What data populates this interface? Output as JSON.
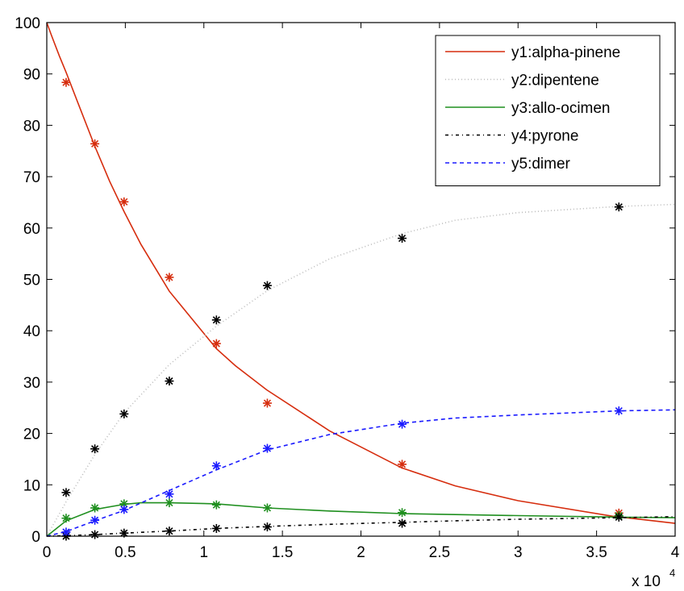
{
  "chart_data": {
    "type": "line",
    "title": "",
    "xlabel": "",
    "ylabel": "",
    "xlim": [
      0,
      40000
    ],
    "ylim": [
      0,
      100
    ],
    "x_exponent_label": "x 10",
    "x_exponent_power": "4",
    "x_ticks": [
      {
        "value": 0,
        "label": "0"
      },
      {
        "value": 5000,
        "label": "0.5"
      },
      {
        "value": 10000,
        "label": "1"
      },
      {
        "value": 15000,
        "label": "1.5"
      },
      {
        "value": 20000,
        "label": "2"
      },
      {
        "value": 25000,
        "label": "2.5"
      },
      {
        "value": 30000,
        "label": "3"
      },
      {
        "value": 35000,
        "label": "3.5"
      },
      {
        "value": 40000,
        "label": "4"
      }
    ],
    "y_ticks": [
      {
        "value": 0,
        "label": "0"
      },
      {
        "value": 10,
        "label": "10"
      },
      {
        "value": 20,
        "label": "20"
      },
      {
        "value": 30,
        "label": "30"
      },
      {
        "value": 40,
        "label": "40"
      },
      {
        "value": 50,
        "label": "50"
      },
      {
        "value": 60,
        "label": "60"
      },
      {
        "value": 70,
        "label": "70"
      },
      {
        "value": 80,
        "label": "80"
      },
      {
        "value": 90,
        "label": "90"
      },
      {
        "value": 100,
        "label": "100"
      }
    ],
    "grid": false,
    "legend_position": "top-right",
    "series": [
      {
        "name": "y1:alpha-pinene",
        "color": "#d62d0e",
        "dash": "solid",
        "marker_color": "#d62d0e",
        "x": [
          0,
          300,
          800,
          1230,
          2000,
          3060,
          4000,
          4920,
          6000,
          7800,
          10800,
          12000,
          14000,
          18000,
          22600,
          26000,
          30000,
          36000,
          38000,
          40000
        ],
        "y": [
          100,
          97.5,
          93.5,
          90.3,
          84.2,
          75.9,
          69.1,
          63.2,
          56.8,
          47.7,
          36.5,
          33.2,
          28.5,
          20.5,
          13.3,
          9.8,
          6.9,
          3.9,
          3.2,
          2.5
        ],
        "obs_x": [
          1230,
          3060,
          4920,
          7800,
          10800,
          14040,
          22620,
          36420
        ],
        "obs_y": [
          88.35,
          76.4,
          65.1,
          50.4,
          37.5,
          25.9,
          14.0,
          4.5
        ]
      },
      {
        "name": "y2:dipentene",
        "color": "#bbbbbb",
        "dash": "1,3",
        "marker_color": "#000000",
        "x": [
          0,
          1230,
          3060,
          4920,
          7800,
          10800,
          14040,
          18000,
          22620,
          26000,
          30000,
          36420,
          40000
        ],
        "y": [
          0,
          6.7,
          15.9,
          24.0,
          33.4,
          40.9,
          47.8,
          54.0,
          58.9,
          61.5,
          63.0,
          64.2,
          64.6
        ],
        "obs_x": [
          1230,
          3060,
          4920,
          7800,
          10800,
          14040,
          22620,
          36420
        ],
        "obs_y": [
          8.5,
          17.0,
          23.8,
          30.2,
          42.1,
          48.8,
          58.0,
          64.1
        ]
      },
      {
        "name": "y3:allo-ocimen",
        "color": "#1f8f1f",
        "dash": "solid",
        "marker_color": "#1f8f1f",
        "x": [
          0,
          1230,
          3060,
          4920,
          6000,
          7800,
          10800,
          14040,
          18000,
          22620,
          26000,
          30000,
          36420,
          40000
        ],
        "y": [
          0,
          3.0,
          5.2,
          6.2,
          6.5,
          6.5,
          6.3,
          5.5,
          4.9,
          4.4,
          4.2,
          4.0,
          3.7,
          3.6
        ],
        "obs_x": [
          1230,
          3060,
          4920,
          7800,
          10800,
          14040,
          22620,
          36420
        ],
        "obs_y": [
          3.5,
          5.5,
          6.3,
          6.5,
          6.1,
          5.5,
          4.6,
          4.0
        ]
      },
      {
        "name": "y4:pyrone",
        "color": "#000000",
        "dash": "4,4,1,4",
        "marker_color": "#000000",
        "x": [
          0,
          1230,
          3060,
          4920,
          7800,
          10800,
          14040,
          18000,
          22620,
          26000,
          30000,
          36420,
          40000
        ],
        "y": [
          0,
          0.1,
          0.3,
          0.6,
          1.0,
          1.5,
          1.9,
          2.3,
          2.7,
          3.0,
          3.3,
          3.6,
          3.8
        ],
        "obs_x": [
          1230,
          3060,
          4920,
          7800,
          10800,
          14040,
          22620,
          36420
        ],
        "obs_y": [
          0.0,
          0.3,
          0.6,
          1.0,
          1.5,
          1.8,
          2.5,
          3.7
        ]
      },
      {
        "name": "y5:dimer",
        "color": "#1a1aff",
        "dash": "5,4",
        "marker_color": "#1a1aff",
        "x": [
          0,
          1230,
          3060,
          4920,
          7800,
          10800,
          14040,
          18000,
          22620,
          26000,
          30000,
          36420,
          40000
        ],
        "y": [
          0,
          0.9,
          3.0,
          5.0,
          8.9,
          12.9,
          16.8,
          19.8,
          22.0,
          23.0,
          23.6,
          24.4,
          24.6
        ],
        "obs_x": [
          1230,
          3060,
          4920,
          7800,
          10800,
          14040,
          22620,
          36420
        ],
        "obs_y": [
          0.8,
          3.1,
          5.2,
          8.2,
          13.7,
          17.1,
          21.8,
          24.4
        ]
      }
    ]
  }
}
